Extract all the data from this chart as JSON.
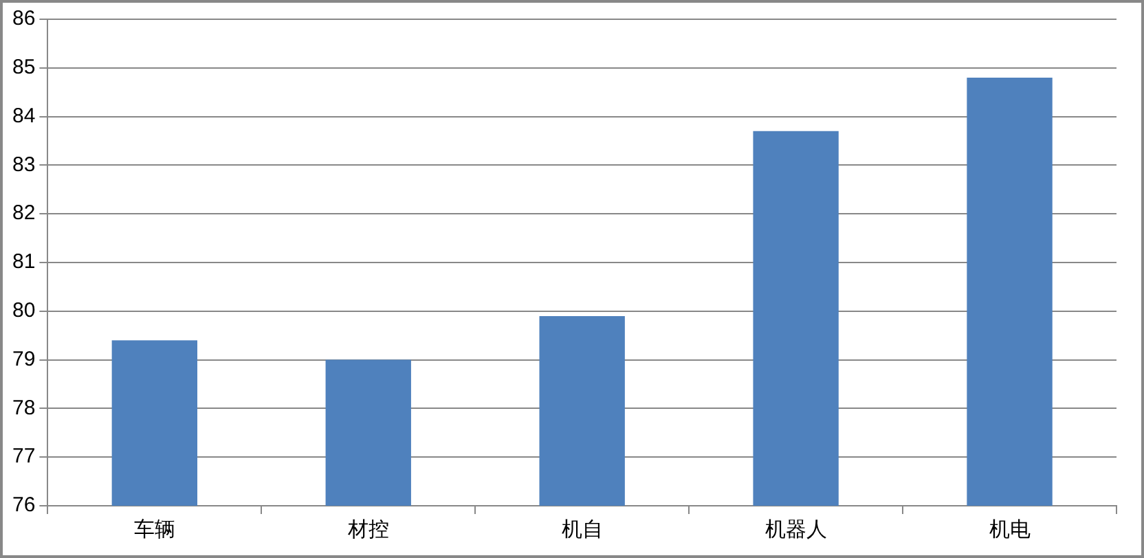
{
  "chart_data": {
    "type": "bar",
    "categories": [
      "车辆",
      "材控",
      "机自",
      "机器人",
      "机电"
    ],
    "values": [
      79.4,
      79.0,
      79.9,
      83.7,
      84.8
    ],
    "color": "#4f81bd",
    "ylim": [
      76,
      86
    ],
    "yticks": [
      76,
      77,
      78,
      79,
      80,
      81,
      82,
      83,
      84,
      85,
      86
    ],
    "grid": "y"
  }
}
